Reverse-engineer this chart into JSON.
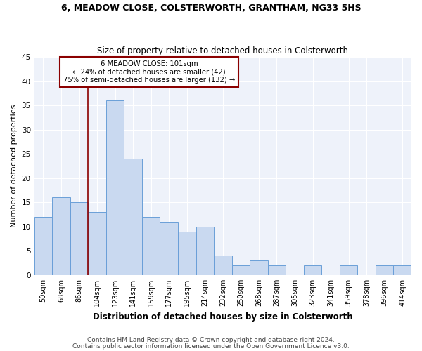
{
  "title1": "6, MEADOW CLOSE, COLSTERWORTH, GRANTHAM, NG33 5HS",
  "title2": "Size of property relative to detached houses in Colsterworth",
  "xlabel": "Distribution of detached houses by size in Colsterworth",
  "ylabel": "Number of detached properties",
  "categories": [
    "50sqm",
    "68sqm",
    "86sqm",
    "104sqm",
    "123sqm",
    "141sqm",
    "159sqm",
    "177sqm",
    "195sqm",
    "214sqm",
    "232sqm",
    "250sqm",
    "268sqm",
    "287sqm",
    "305sqm",
    "323sqm",
    "341sqm",
    "359sqm",
    "378sqm",
    "396sqm",
    "414sqm"
  ],
  "values": [
    12,
    16,
    15,
    13,
    36,
    24,
    12,
    11,
    9,
    10,
    4,
    2,
    3,
    2,
    0,
    2,
    0,
    2,
    0,
    2,
    2
  ],
  "bar_color": "#c9d9f0",
  "bar_edge_color": "#6a9fd8",
  "marker_label": "6 MEADOW CLOSE: 101sqm",
  "annotation_line1": "← 24% of detached houses are smaller (42)",
  "annotation_line2": "75% of semi-detached houses are larger (132) →",
  "vline_color": "#8b0000",
  "box_edge_color": "#8b0000",
  "ylim": [
    0,
    45
  ],
  "yticks": [
    0,
    5,
    10,
    15,
    20,
    25,
    30,
    35,
    40,
    45
  ],
  "footer1": "Contains HM Land Registry data © Crown copyright and database right 2024.",
  "footer2": "Contains public sector information licensed under the Open Government Licence v3.0.",
  "bg_color": "#eef2fa"
}
